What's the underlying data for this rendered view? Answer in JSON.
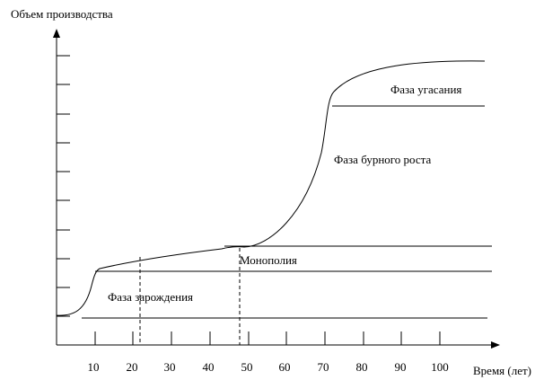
{
  "axes": {
    "y_label": "Объем производства",
    "x_label": "Время (лет)",
    "x_ticks": [
      "10",
      "20",
      "30",
      "40",
      "50",
      "60",
      "70",
      "80",
      "90",
      "100"
    ]
  },
  "phases": {
    "birth": "Фаза зарождения",
    "monopoly": "Монополия",
    "growth": "Фаза бурного роста",
    "decline": "Фаза угасания"
  }
}
